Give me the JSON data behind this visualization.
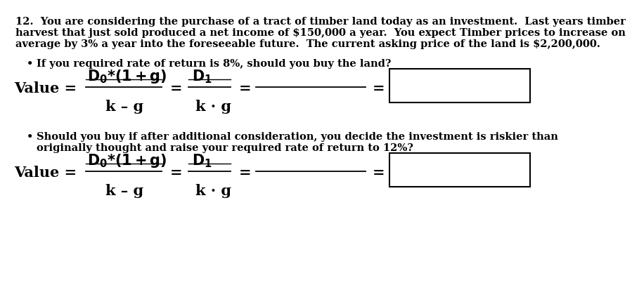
{
  "bg_color": "#ffffff",
  "text_color": "#000000",
  "title_line1": "12.  You are considering the purchase of a tract of timber land today as an investment.  Last years timber",
  "title_line2": "harvest that just sold produced a net income of $150,000 a year.  You expect Timber prices to increase on",
  "title_line3": "average by 3% a year into the foreseeable future.  The current asking price of the land is $2,200,000.",
  "bullet1": "If you required rate of return is 8%, should you buy the land?",
  "bullet2_line1": "Should you buy if after additional consideration, you decide the investment is riskier than",
  "bullet2_line2": "originally thought and raise your required rate of return to 12%?",
  "font_size_body": 10.5,
  "font_size_formula": 15,
  "font_size_formula_sm": 13
}
